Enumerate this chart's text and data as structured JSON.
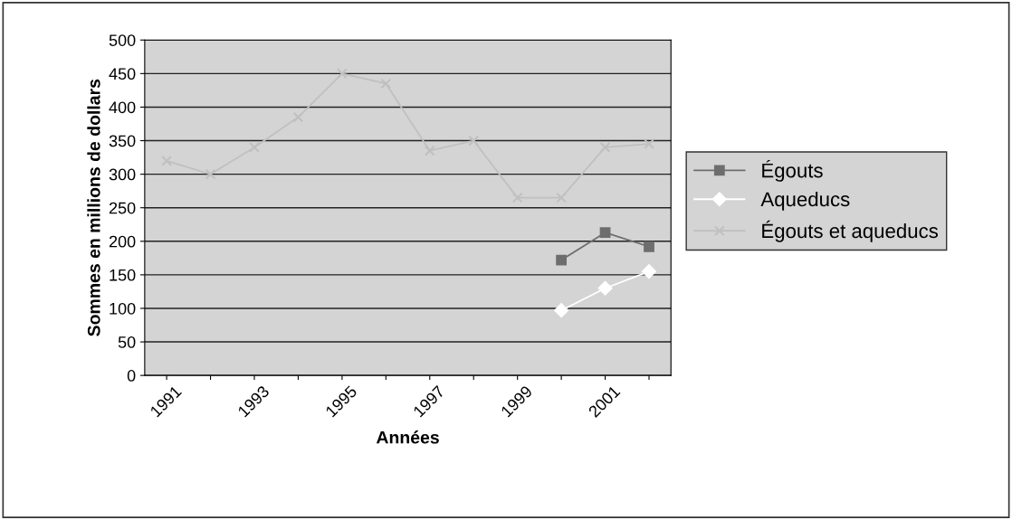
{
  "chart_data": {
    "type": "line",
    "xlabel": "Années",
    "ylabel": "Sommes en millions de dollars",
    "categories": [
      "1991",
      null,
      "1993",
      null,
      "1995",
      null,
      "1997",
      null,
      "1999",
      null,
      "2001",
      null
    ],
    "series": [
      {
        "name": "Égouts",
        "color": "#6e6e6e",
        "marker": "square",
        "values": [
          null,
          null,
          null,
          null,
          null,
          null,
          null,
          null,
          null,
          172,
          213,
          192
        ]
      },
      {
        "name": "Aqueducs",
        "color": "#ffffff",
        "marker": "diamond",
        "values": [
          null,
          null,
          null,
          null,
          null,
          null,
          null,
          null,
          null,
          97,
          130,
          155
        ]
      },
      {
        "name": "Égouts et aqueducs",
        "color": "#c0c0c0",
        "marker": "cross",
        "values": [
          320,
          300,
          340,
          385,
          450,
          435,
          335,
          350,
          265,
          265,
          340,
          345
        ]
      }
    ],
    "ylim": [
      0,
      500
    ],
    "yticks": [
      0,
      50,
      100,
      150,
      200,
      250,
      300,
      350,
      400,
      450,
      500
    ],
    "grid": "y",
    "legend": "right"
  }
}
